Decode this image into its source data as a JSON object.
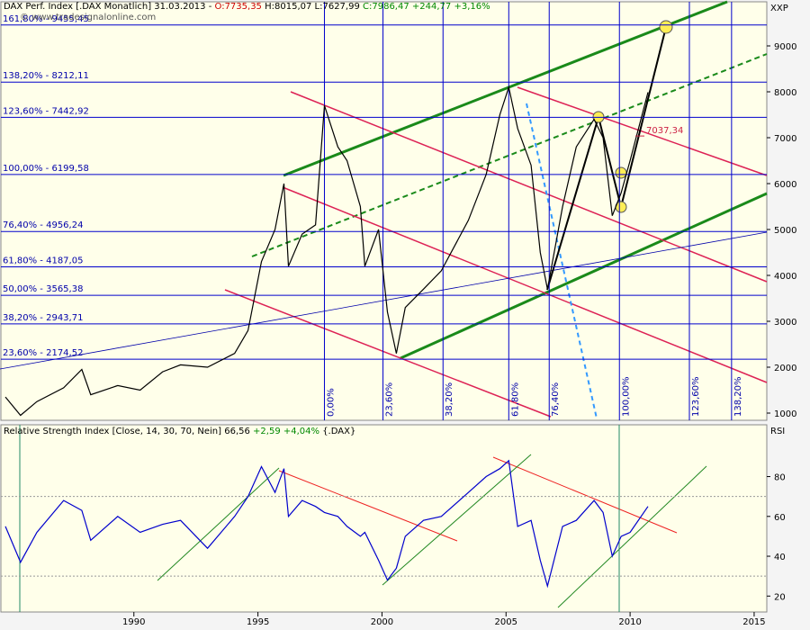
{
  "chart_data": [
    {
      "type": "line",
      "header": [
        "DAX Perf. Index [.DAX Monatlich] 31.03.2013 - ",
        "O:7735,35",
        " H:8015,07",
        " L:7627,99",
        " C:7986,47",
        " +244,77",
        " +3,16%"
      ],
      "header_colors": [
        "#000000",
        "#cc0000",
        "#000000",
        "#000000",
        "#008800",
        "#008800",
        "#008800"
      ],
      "source": "© www.tradesignalonline.com",
      "axis_label": "XXP",
      "x": [
        1984.82,
        1985.43,
        1986.09,
        1987.17,
        1987.9,
        1988.26,
        1989.35,
        1990.25,
        1991.16,
        1991.88,
        1992.97,
        1994.06,
        1994.6,
        1995.14,
        1995.69,
        1996.05,
        1996.23,
        1996.78,
        1997.32,
        1997.68,
        1998.22,
        1998.59,
        1999.13,
        1999.31,
        1999.86,
        2000.22,
        2000.58,
        2000.94,
        2001.67,
        2002.39,
        2003.48,
        2004.2,
        2004.75,
        2005.11,
        2005.47,
        2006.01,
        2006.38,
        2006.67,
        2007.28,
        2007.83,
        2008.55,
        2008.91,
        2009.28,
        2009.64,
        2010.0,
        2010.72
      ],
      "values": [
        1350,
        950,
        1250,
        1550,
        1950,
        1400,
        1600,
        1500,
        1900,
        2050,
        2000,
        2300,
        2800,
        4300,
        5000,
        6000,
        4200,
        4900,
        5100,
        7700,
        6800,
        6500,
        5500,
        4200,
        5000,
        3200,
        2300,
        3300,
        3700,
        4100,
        5200,
        6200,
        7500,
        8100,
        7200,
        6400,
        4500,
        3700,
        5500,
        6800,
        7400,
        7000,
        5300,
        5800,
        6500,
        7990
      ],
      "color": "#000000",
      "xlim": [
        1984.64,
        2015.51
      ],
      "ylim": [
        843,
        9961
      ],
      "yticks": [
        1000,
        2000,
        3000,
        4000,
        5000,
        6000,
        7000,
        8000,
        9000
      ],
      "fib_levels": [
        {
          "value": 9455.45,
          "label": "161,80% - 9455,45"
        },
        {
          "value": 8212.11,
          "label": "138,20% - 8212,11"
        },
        {
          "value": 7442.92,
          "label": "123,60% - 7442,92"
        },
        {
          "value": 6199.58,
          "label": "100,00% - 6199,58"
        },
        {
          "value": 4956.24,
          "label": "76,40% - 4956,24"
        },
        {
          "value": 4187.05,
          "label": "61,80% - 4187,05"
        },
        {
          "value": 3565.38,
          "label": "50,00% - 3565,38"
        },
        {
          "value": 2943.71,
          "label": "38,20% - 2943,71"
        },
        {
          "value": 2174.52,
          "label": "23,60% - 2174,52"
        }
      ],
      "time_levels": [
        {
          "value": 1997.68,
          "label": "0,00%"
        },
        {
          "value": 2000.04,
          "label": "23,60%"
        },
        {
          "value": 2002.46,
          "label": "38,20%"
        },
        {
          "value": 2005.11,
          "label": "61,80%"
        },
        {
          "value": 2006.74,
          "label": "76,40%"
        },
        {
          "value": 2009.57,
          "label": "100,00%"
        },
        {
          "value": 2012.39,
          "label": "123,60%"
        },
        {
          "value": 2014.09,
          "label": "138,20%"
        }
      ],
      "annotation": {
        "value": 7037.34,
        "label": "7037,34"
      }
    },
    {
      "type": "line",
      "header": [
        "Relative Strength Index [Close, 14, 30, 70, Nein] 66,56",
        " +2,59 +4,04%",
        " {.DAX}"
      ],
      "header_colors": [
        "#000000",
        "#008800",
        "#000000"
      ],
      "axis_label": "RSI",
      "x": [
        1984.82,
        1985.43,
        1986.09,
        1987.17,
        1987.9,
        1988.26,
        1989.35,
        1990.25,
        1991.16,
        1991.88,
        1992.97,
        1994.06,
        1994.6,
        1995.14,
        1995.69,
        1996.05,
        1996.23,
        1996.78,
        1997.32,
        1997.68,
        1998.22,
        1998.59,
        1999.13,
        1999.31,
        1999.86,
        2000.22,
        2000.58,
        2000.94,
        2001.67,
        2002.39,
        2003.48,
        2004.2,
        2004.75,
        2005.11,
        2005.47,
        2006.01,
        2006.38,
        2006.67,
        2007.28,
        2007.83,
        2008.55,
        2008.91,
        2009.28,
        2009.64,
        2010.0,
        2010.72
      ],
      "values": [
        55,
        37,
        52,
        68,
        63,
        48,
        60,
        52,
        56,
        58,
        44,
        60,
        70,
        85,
        72,
        84,
        60,
        68,
        65,
        62,
        60,
        55,
        50,
        52,
        38,
        28,
        34,
        50,
        58,
        60,
        72,
        80,
        84,
        88,
        55,
        58,
        38,
        25,
        55,
        58,
        68,
        62,
        40,
        50,
        52,
        65
      ],
      "color": "#0000cc",
      "xlim": [
        1984.64,
        2015.51
      ],
      "ylim": [
        12,
        106
      ],
      "yticks": [
        20,
        40,
        60,
        80
      ],
      "bands": [
        30,
        70
      ],
      "xticks": [
        1990,
        1995,
        2000,
        2005,
        2010,
        2015
      ]
    }
  ]
}
